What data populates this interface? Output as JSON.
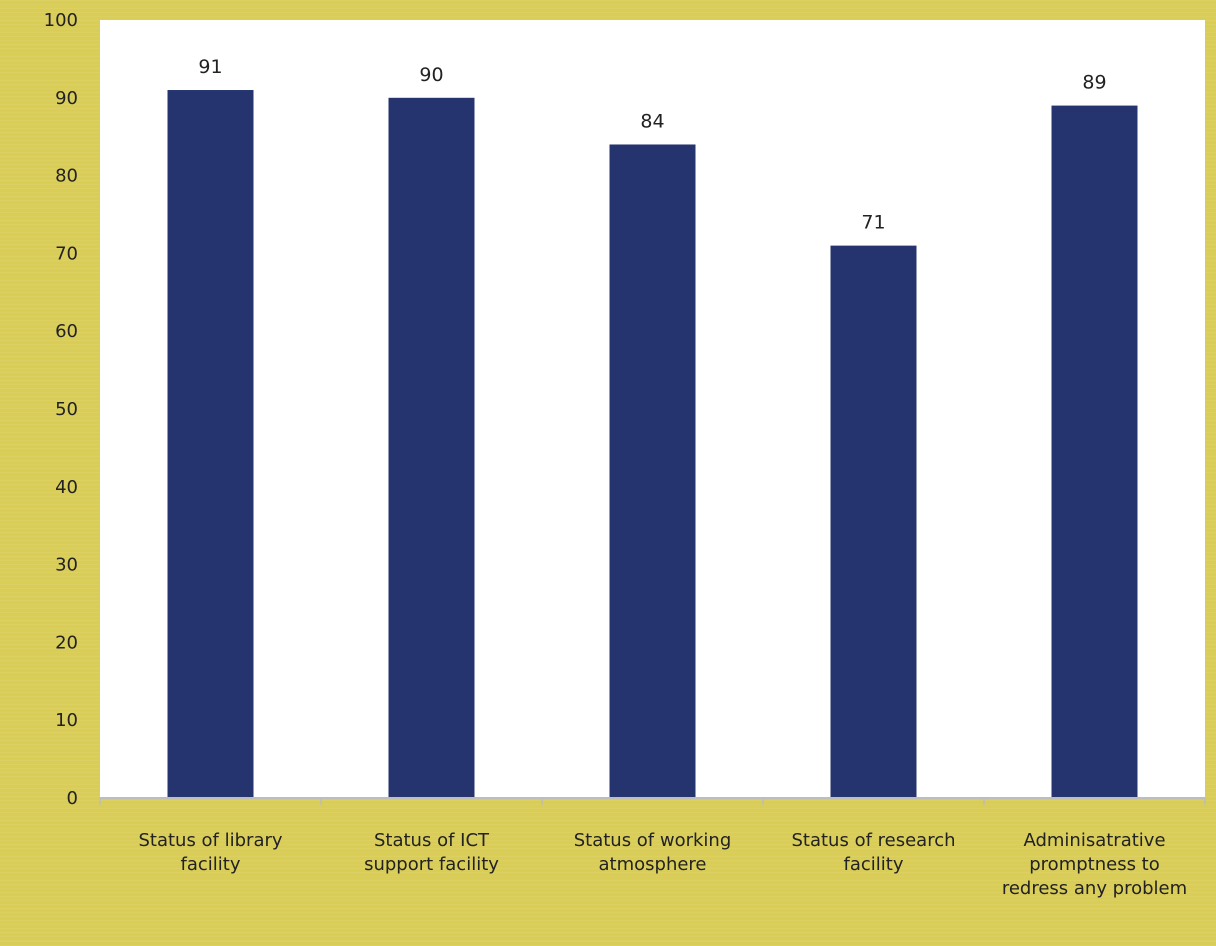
{
  "colors": {
    "background": "#d9cd57",
    "plot_area": "#ffffff",
    "bar": "#25346e",
    "axis": "#bdbdbd",
    "text": "#222222"
  },
  "chart_data": {
    "type": "bar",
    "categories": [
      [
        "Status of library",
        "facility"
      ],
      [
        "Status of ICT",
        "support facility"
      ],
      [
        "Status of working",
        "atmosphere"
      ],
      [
        "Status of research",
        "facility"
      ],
      [
        "Adminisatrative",
        "promptness to",
        "redress any problem"
      ]
    ],
    "values": [
      91,
      90,
      84,
      71,
      89
    ],
    "data_labels": [
      "91",
      "90",
      "84",
      "71",
      "89"
    ],
    "yticks": [
      "0",
      "10",
      "20",
      "30",
      "40",
      "50",
      "60",
      "70",
      "80",
      "90",
      "100"
    ],
    "ylim": [
      0,
      100
    ],
    "grid": false,
    "legend": "none",
    "title": "",
    "xlabel": "",
    "ylabel": ""
  }
}
